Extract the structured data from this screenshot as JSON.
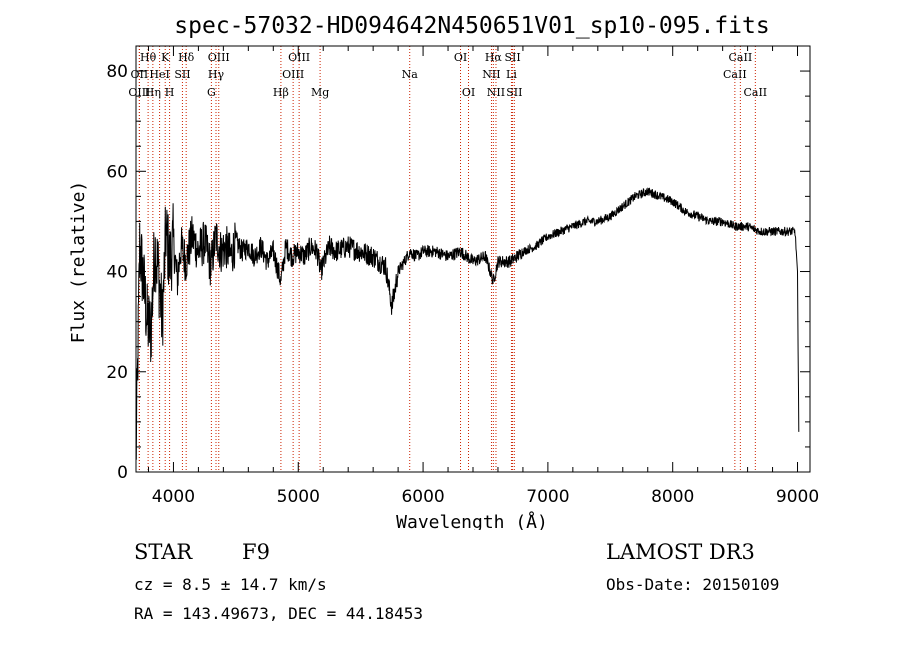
{
  "chart_data": {
    "type": "line",
    "title": "spec-57032-HD094642N450651V01_sp10-095.fits",
    "xlabel": "Wavelength (Å)",
    "ylabel": "Flux (relative)",
    "xlim": [
      3700,
      9100
    ],
    "ylim": [
      0,
      85
    ],
    "xticks": [
      4000,
      5000,
      6000,
      7000,
      8000,
      9000
    ],
    "yticks": [
      0,
      20,
      40,
      60,
      80
    ],
    "series": [
      {
        "name": "spectrum",
        "x": [
          3700,
          3730,
          3760,
          3790,
          3820,
          3850,
          3880,
          3910,
          3940,
          3970,
          4000,
          4030,
          4060,
          4100,
          4150,
          4200,
          4250,
          4300,
          4340,
          4380,
          4420,
          4460,
          4500,
          4550,
          4600,
          4650,
          4700,
          4750,
          4800,
          4861,
          4900,
          4950,
          5000,
          5050,
          5100,
          5150,
          5180,
          5250,
          5300,
          5400,
          5500,
          5600,
          5700,
          5750,
          5800,
          5850,
          5893,
          5950,
          6000,
          6100,
          6200,
          6300,
          6400,
          6500,
          6563,
          6600,
          6700,
          6800,
          6900,
          7000,
          7100,
          7200,
          7300,
          7400,
          7500,
          7600,
          7700,
          7800,
          7900,
          8000,
          8100,
          8200,
          8300,
          8400,
          8500,
          8600,
          8700,
          8800,
          8900,
          8980,
          9000,
          9010
        ],
        "values": [
          2,
          45,
          38,
          30,
          28,
          45,
          40,
          30,
          48,
          42,
          46,
          38,
          45,
          42,
          47,
          44,
          46,
          41,
          47,
          44,
          45,
          43,
          46,
          44,
          45,
          43,
          45,
          42,
          44,
          38,
          45,
          43,
          44,
          43,
          45,
          44,
          40,
          45,
          44,
          45,
          44,
          43,
          41,
          33,
          40,
          42,
          44,
          43,
          44,
          44,
          43,
          44,
          42,
          43,
          38,
          42,
          42,
          44,
          45,
          47,
          48,
          49,
          50,
          50,
          51,
          53,
          55,
          56,
          55,
          54,
          52,
          51,
          50,
          50,
          49,
          49,
          48,
          48,
          48,
          48,
          40,
          8
        ]
      }
    ],
    "lines": [
      {
        "label": "Hθ",
        "x": 3797,
        "row": 1
      },
      {
        "label": "OII",
        "x": 3727,
        "row": 2
      },
      {
        "label": "OIII",
        "x": 3727,
        "row": 3
      },
      {
        "label": "K",
        "x": 3934,
        "row": 1
      },
      {
        "label": "HeI",
        "x": 3889,
        "row": 2
      },
      {
        "label": "Hη",
        "x": 3835,
        "row": 3
      },
      {
        "label": "SII",
        "x": 4072,
        "row": 2
      },
      {
        "label": "H",
        "x": 3969,
        "row": 3
      },
      {
        "label": "Hδ",
        "x": 4102,
        "row": 1
      },
      {
        "label": "OIII",
        "x": 4363,
        "row": 1
      },
      {
        "label": "Hγ",
        "x": 4341,
        "row": 2
      },
      {
        "label": "G",
        "x": 4304,
        "row": 3
      },
      {
        "label": "OIII",
        "x": 5007,
        "row": 1
      },
      {
        "label": "OIII",
        "x": 4959,
        "row": 2
      },
      {
        "label": "Hβ",
        "x": 4861,
        "row": 3
      },
      {
        "label": "Mg",
        "x": 5175,
        "row": 3
      },
      {
        "label": "Na",
        "x": 5893,
        "row": 2
      },
      {
        "label": "OI",
        "x": 6300,
        "row": 1
      },
      {
        "label": "OI",
        "x": 6364,
        "row": 3
      },
      {
        "label": "Hα",
        "x": 6563,
        "row": 1
      },
      {
        "label": "NII",
        "x": 6548,
        "row": 2
      },
      {
        "label": "NII",
        "x": 6584,
        "row": 3
      },
      {
        "label": "SII",
        "x": 6717,
        "row": 1
      },
      {
        "label": "Li",
        "x": 6708,
        "row": 2
      },
      {
        "label": "SII",
        "x": 6731,
        "row": 3
      },
      {
        "label": "CaII",
        "x": 8542,
        "row": 1
      },
      {
        "label": "CaII",
        "x": 8498,
        "row": 2
      },
      {
        "label": "CaII",
        "x": 8662,
        "row": 3
      }
    ]
  },
  "info": {
    "object_type": "STAR",
    "subclass": "F9",
    "survey": "LAMOST DR3",
    "cz": "cz = 8.5 ± 14.7 km/s",
    "obs_date": "Obs-Date: 20150109",
    "coords": "RA = 143.49673, DEC =  44.18453"
  },
  "colors": {
    "line_marker": "#cc2200",
    "spectrum": "#000000",
    "axis": "#000000"
  }
}
